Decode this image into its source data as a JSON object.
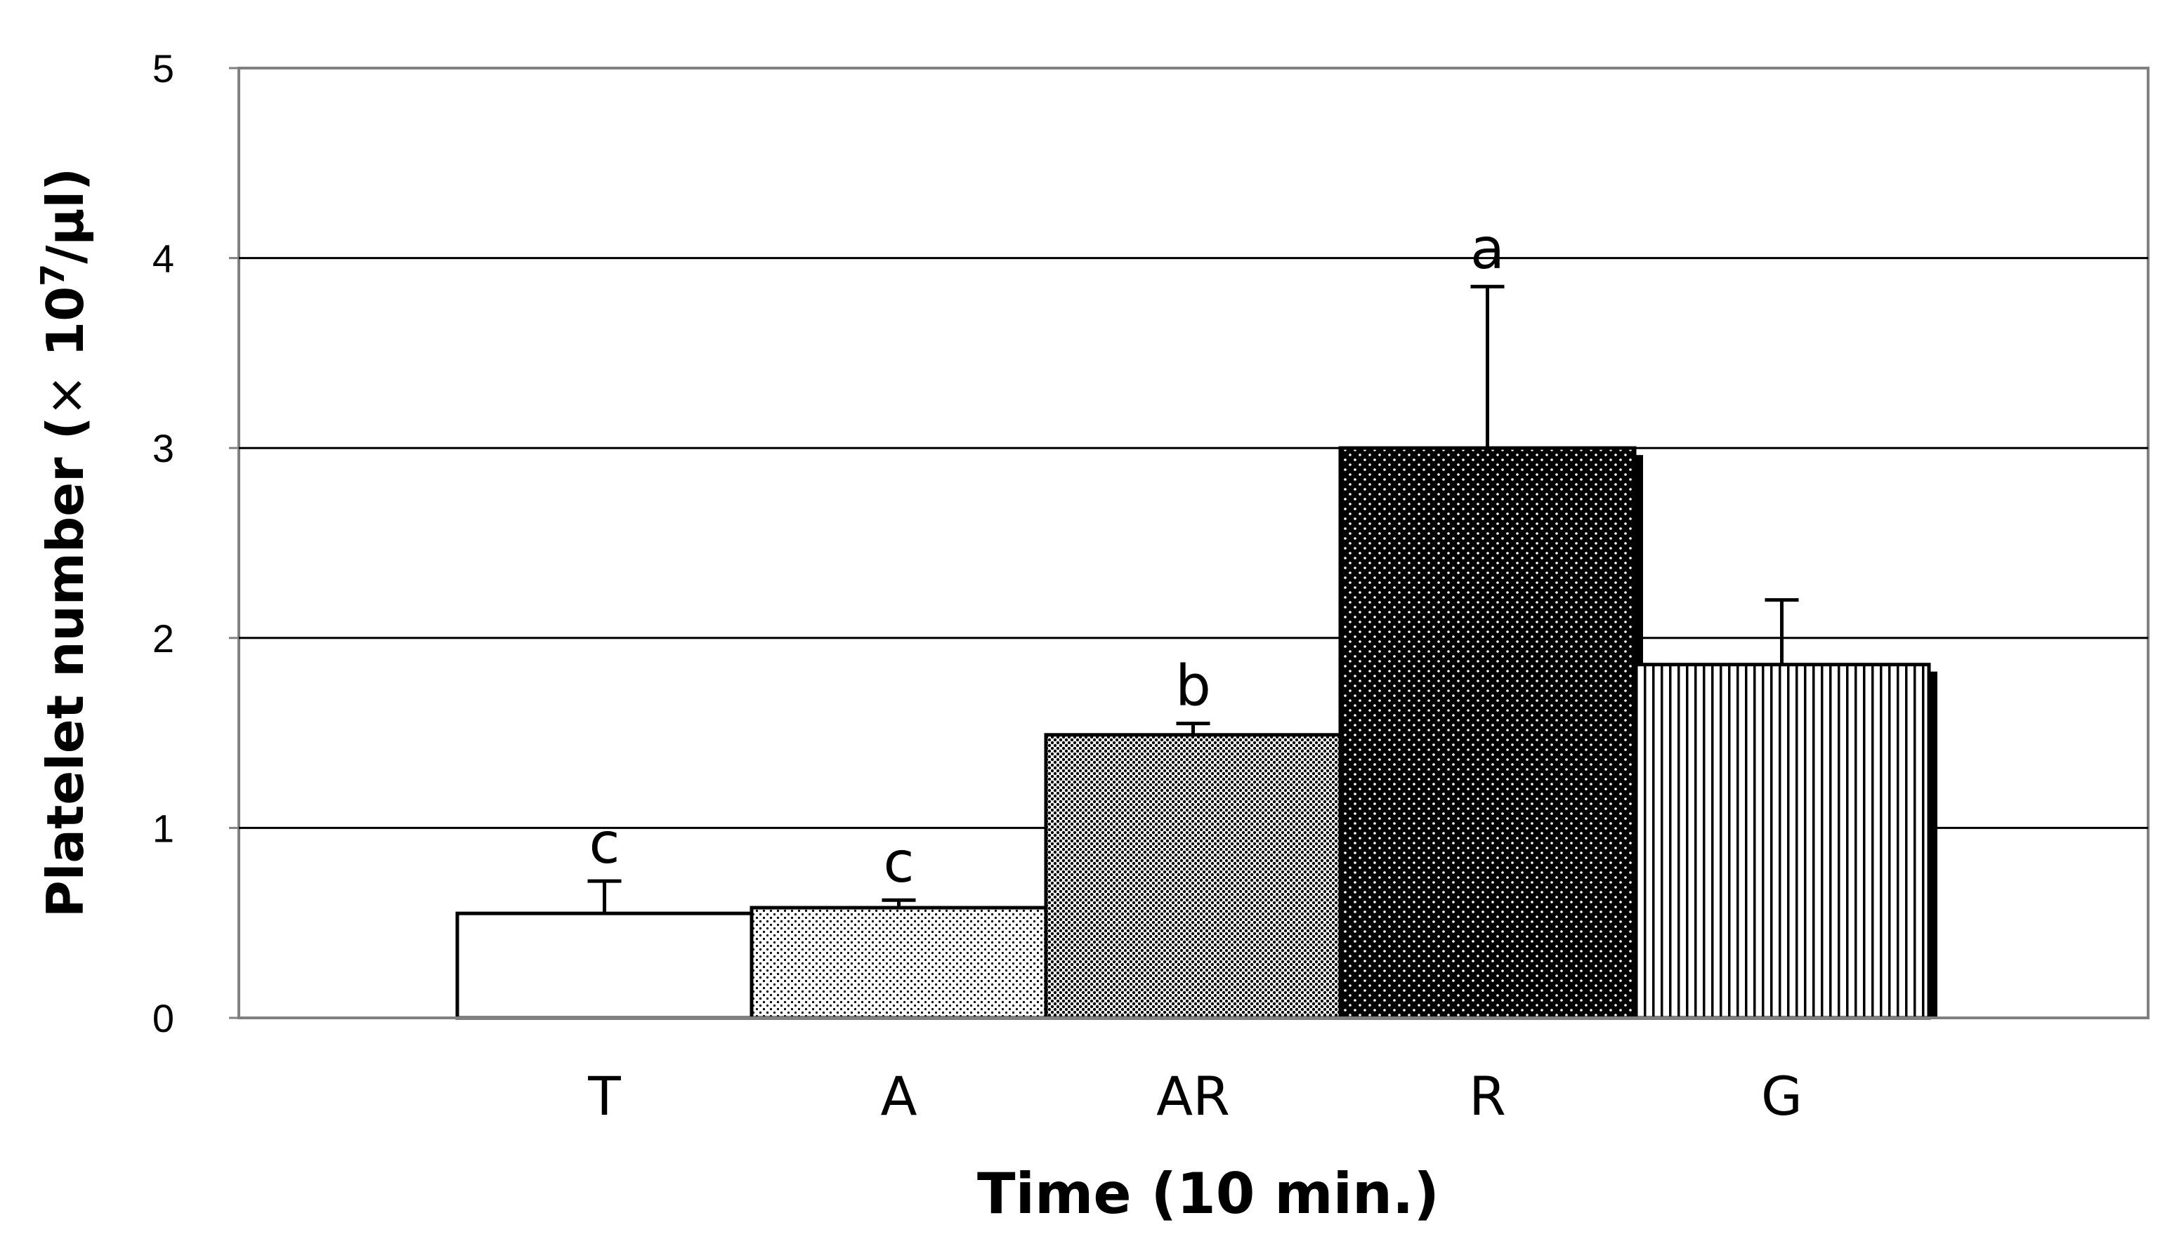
{
  "chart_data": {
    "type": "bar",
    "categories": [
      "T",
      "A",
      "AR",
      "R",
      "G"
    ],
    "values": [
      0.55,
      0.58,
      1.49,
      3.0,
      1.86
    ],
    "error": [
      0.17,
      0.04,
      0.06,
      0.85,
      0.34
    ],
    "significance": [
      "c",
      "c",
      "b",
      "a",
      ""
    ],
    "fills": [
      "white",
      "light-dot",
      "medium-dot",
      "dense-dot",
      "vertical-lines"
    ],
    "ylim": [
      0,
      5
    ],
    "yticks": [
      0,
      1,
      2,
      3,
      4,
      5
    ],
    "ylabel_main": "Platelet number (",
    "ylabel_times": "×",
    "ylabel_ten": " 10",
    "ylabel_exp": "7",
    "ylabel_unit": "/μl)",
    "xlabel": "Time (10 min.)",
    "title": "",
    "grid": true,
    "legend": "none",
    "colors": {
      "bar_edge": "#000000",
      "grid": "#000000",
      "frame": "#808080",
      "background": "#ffffff"
    }
  }
}
